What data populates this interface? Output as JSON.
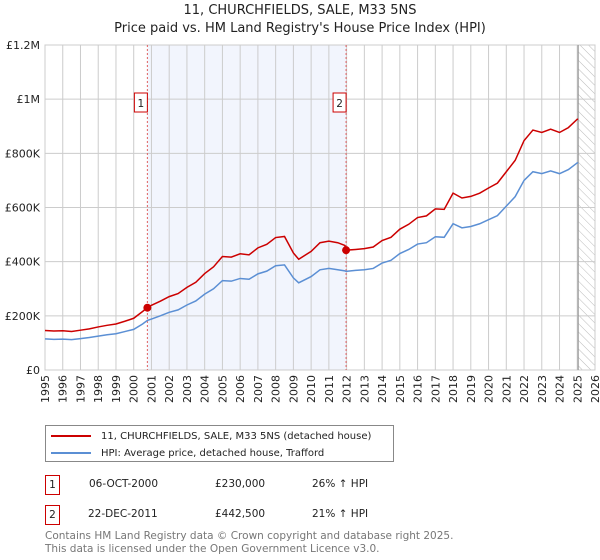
{
  "chart_data": {
    "type": "line",
    "title": "11, CHURCHFIELDS, SALE, M33 5NS",
    "subtitle": "Price paid vs. HM Land Registry's House Price Index (HPI)",
    "xlim": [
      1995,
      2026
    ],
    "ylim": [
      0,
      1200000
    ],
    "y_ticks": [
      {
        "v": 0,
        "label": "£0"
      },
      {
        "v": 200000,
        "label": "£200K"
      },
      {
        "v": 400000,
        "label": "£400K"
      },
      {
        "v": 600000,
        "label": "£600K"
      },
      {
        "v": 800000,
        "label": "£800K"
      },
      {
        "v": 1000000,
        "label": "£1M"
      },
      {
        "v": 1200000,
        "label": "£1.2M"
      }
    ],
    "x_ticks": [
      "1995",
      "1996",
      "1997",
      "1998",
      "1999",
      "2000",
      "2001",
      "2002",
      "2003",
      "2004",
      "2005",
      "2006",
      "2007",
      "2008",
      "2009",
      "2010",
      "2011",
      "2012",
      "2013",
      "2014",
      "2015",
      "2016",
      "2017",
      "2018",
      "2019",
      "2020",
      "2021",
      "2022",
      "2023",
      "2024",
      "2025",
      "2026"
    ],
    "grid": true,
    "data_end_year": 2025.05,
    "series": [
      {
        "name": "11, CHURCHFIELDS, SALE, M33 5NS (detached house)",
        "color": "#cc0000",
        "x": [
          1995,
          1995.5,
          1996,
          1996.5,
          1997,
          1997.5,
          1998,
          1998.5,
          1999,
          1999.5,
          2000,
          2000.5,
          2000.77,
          2001,
          2001.5,
          2002,
          2002.5,
          2003,
          2003.5,
          2004,
          2004.5,
          2005,
          2005.5,
          2006,
          2006.5,
          2007,
          2007.5,
          2008,
          2008.5,
          2009,
          2009.3,
          2010,
          2010.5,
          2011,
          2011.5,
          2011.9,
          2011.97,
          2012.5,
          2013,
          2013.5,
          2014,
          2014.5,
          2015,
          2015.5,
          2016,
          2016.5,
          2017,
          2017.5,
          2018,
          2018.5,
          2019,
          2019.5,
          2020,
          2020.5,
          2021,
          2021.5,
          2022,
          2022.5,
          2023,
          2023.5,
          2024,
          2024.5,
          2025,
          2025.05
        ],
        "y": [
          146,
          144,
          145,
          142,
          147,
          152,
          159,
          165,
          170,
          180,
          191,
          216,
          230,
          239,
          254,
          271,
          282,
          305,
          324,
          356,
          381,
          419,
          417,
          429,
          425,
          451,
          464,
          489,
          493,
          432,
          409,
          438,
          470,
          476,
          470,
          460,
          442.5,
          445,
          448,
          454,
          478,
          490,
          520,
          538,
          563,
          569,
          595,
          593,
          653,
          635,
          641,
          653,
          672,
          690,
          732,
          774,
          847,
          886,
          877,
          889,
          877,
          895,
          926,
          926
        ]
      },
      {
        "name": "HPI: Average price, detached house, Trafford",
        "color": "#5b8fd4",
        "x": [
          1995,
          1995.5,
          1996,
          1996.5,
          1997,
          1997.5,
          1998,
          1998.5,
          1999,
          1999.5,
          2000,
          2000.5,
          2000.77,
          2001,
          2001.5,
          2002,
          2002.5,
          2003,
          2003.5,
          2004,
          2004.5,
          2005,
          2005.5,
          2006,
          2006.5,
          2007,
          2007.5,
          2008,
          2008.5,
          2009,
          2009.3,
          2010,
          2010.5,
          2011,
          2011.5,
          2011.9,
          2011.97,
          2012.5,
          2013,
          2013.5,
          2014,
          2014.5,
          2015,
          2015.5,
          2016,
          2016.5,
          2017,
          2017.5,
          2018,
          2018.5,
          2019,
          2019.5,
          2020,
          2020.5,
          2021,
          2021.5,
          2022,
          2022.5,
          2023,
          2023.5,
          2024,
          2024.5,
          2025,
          2025.05
        ],
        "y": [
          115,
          113,
          114,
          112,
          116,
          120,
          125,
          130,
          134,
          142,
          150,
          170,
          183,
          188,
          200,
          213,
          222,
          240,
          255,
          280,
          300,
          330,
          328,
          338,
          335,
          355,
          365,
          385,
          388,
          340,
          322,
          345,
          370,
          375,
          370,
          366,
          364,
          368,
          370,
          375,
          395,
          405,
          430,
          445,
          465,
          470,
          492,
          490,
          540,
          525,
          530,
          540,
          555,
          570,
          605,
          640,
          700,
          732,
          725,
          735,
          725,
          740,
          765,
          765
        ]
      }
    ],
    "y_unit": "thousands GBP",
    "sales": [
      {
        "id": "1",
        "year": 2000.77,
        "value": 230000,
        "date": "06-OCT-2000",
        "price": "£230,000",
        "hpi": "26% ↑ HPI"
      },
      {
        "id": "2",
        "year": 2011.97,
        "value": 442500,
        "date": "22-DEC-2011",
        "price": "£442,500",
        "hpi": "21% ↑ HPI"
      }
    ]
  },
  "footer": {
    "line1": "Contains HM Land Registry data © Crown copyright and database right 2025.",
    "line2": "This data is licensed under the Open Government Licence v3.0."
  }
}
